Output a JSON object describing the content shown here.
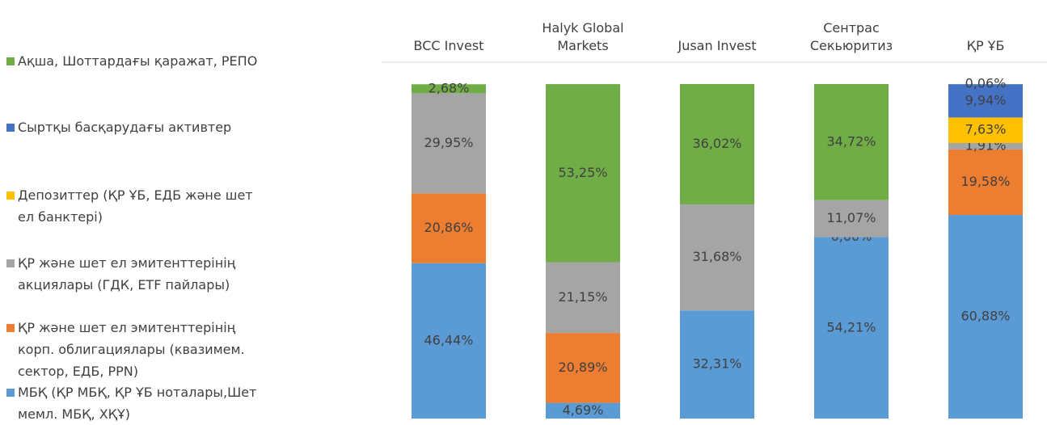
{
  "chart_data": {
    "type": "stacked_bar",
    "categories": [
      "BCC Invest",
      "Halyk Global Markets",
      "Jusan Invest",
      "Сентрас Секьюритиз",
      "ҚР ҰБ"
    ],
    "ylim": [
      0,
      100
    ],
    "series": [
      {
        "name": "МБҚ (ҚР МБҚ, ҚР ҰБ ноталары,Шет мемл. МБҚ, ХҚҰ)",
        "color": "#5b9bd5",
        "values": [
          46.44,
          4.69,
          32.31,
          54.21,
          60.88
        ],
        "value_labels": [
          "46,44%",
          "4,69%",
          "32,31%",
          "54,21%",
          "60,88%"
        ]
      },
      {
        "name": "ҚР және шет ел эмитенттерінің корп. облигациялары (квазимем. сектор, ЕДБ, PPN)",
        "color": "#ed7d31",
        "values": [
          20.86,
          20.89,
          null,
          0,
          19.58
        ],
        "value_labels": [
          "20,86%",
          "20,89%",
          null,
          "0,00%",
          "19,58%"
        ]
      },
      {
        "name": "ҚР және шет ел эмитенттерінің акциялары (ГДК, ETF пайлары)",
        "color": "#a5a5a5",
        "values": [
          29.95,
          21.15,
          31.68,
          11.07,
          1.91
        ],
        "value_labels": [
          "29,95%",
          "21,15%",
          "31,68%",
          "11,07%",
          "1,91%"
        ]
      },
      {
        "name": "Депозиттер (ҚР ҰБ, ЕДБ және шет ел банктері)",
        "color": "#ffc000",
        "values": [
          null,
          null,
          null,
          null,
          7.63
        ],
        "value_labels": [
          null,
          null,
          null,
          null,
          "7,63%"
        ]
      },
      {
        "name": "Сыртқы басқарудағы активтер",
        "color": "#4472c4",
        "values": [
          null,
          null,
          null,
          null,
          9.94
        ],
        "value_labels": [
          null,
          null,
          null,
          null,
          "9,94%"
        ]
      },
      {
        "name": "Ақша, Шоттардағы қаражат, РЕПО",
        "color": "#70ad47",
        "values": [
          2.68,
          53.25,
          36.02,
          34.72,
          0.06
        ],
        "value_labels": [
          "2,68%",
          "53,25%",
          "36,02%",
          "34,72%",
          "0,06%"
        ]
      }
    ]
  }
}
